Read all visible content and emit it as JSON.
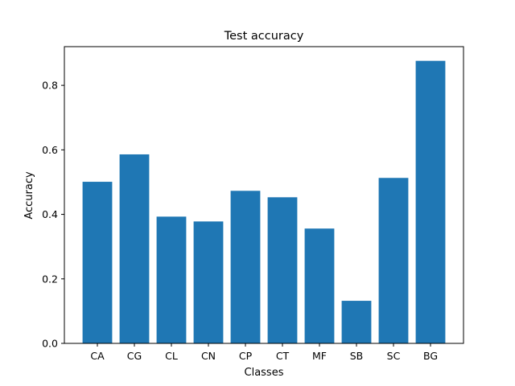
{
  "chart_data": {
    "type": "bar",
    "title": "Test accuracy",
    "xlabel": "Classes",
    "ylabel": "Accuracy",
    "categories": [
      "CA",
      "CG",
      "CL",
      "CN",
      "CP",
      "CT",
      "MF",
      "SB",
      "SC",
      "BG"
    ],
    "values": [
      0.501,
      0.586,
      0.393,
      0.378,
      0.473,
      0.453,
      0.356,
      0.132,
      0.513,
      0.876
    ],
    "ylim": [
      0,
      0.92
    ],
    "yticks": [
      0.0,
      0.2,
      0.4,
      0.6,
      0.8
    ],
    "ytick_labels": [
      "0.0",
      "0.2",
      "0.4",
      "0.6",
      "0.8"
    ],
    "bar_color": "#1f77b4",
    "grid": false,
    "legend": null
  }
}
